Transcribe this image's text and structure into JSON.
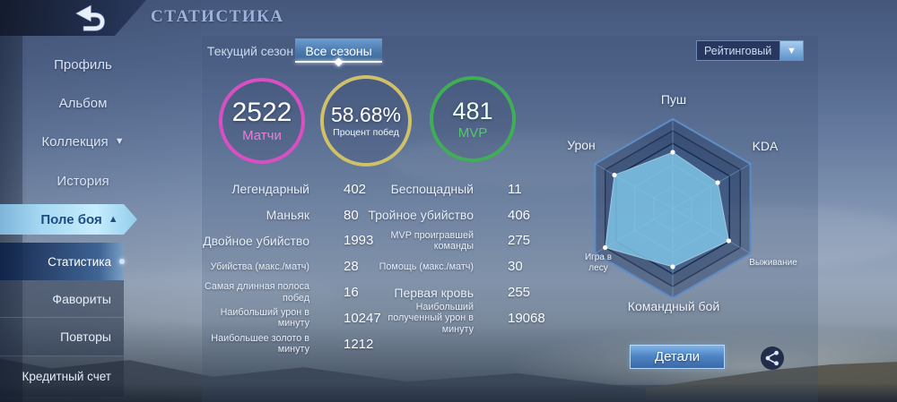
{
  "header": {
    "title": "СТАТИСТИКА"
  },
  "sidebar": {
    "items": [
      {
        "label": "Профиль"
      },
      {
        "label": "Альбом"
      },
      {
        "label": "Коллекция",
        "chevron": "down"
      },
      {
        "label": "История"
      },
      {
        "label": "Поле боя",
        "chevron": "up",
        "state": "selected"
      },
      {
        "label": "Статистика",
        "state": "active"
      },
      {
        "label": "Фавориты"
      },
      {
        "label": "Повторы"
      },
      {
        "label": "Кредитный счет"
      }
    ]
  },
  "panel": {
    "tabs": [
      {
        "label": "Текущий сезон",
        "active": false
      },
      {
        "label": "Все сезоны",
        "active": true
      }
    ],
    "filter": {
      "value": "Рейтинговый"
    },
    "circles": [
      {
        "value": "2522",
        "label": "Матчи"
      },
      {
        "value": "58.68%",
        "label": "Процент побед"
      },
      {
        "value": "481",
        "label": "MVP"
      }
    ],
    "stats_left": [
      {
        "label": "Легендарный",
        "value": "402"
      },
      {
        "label": "Маньяк",
        "value": "80"
      },
      {
        "label": "Двойное убийство",
        "value": "1993"
      },
      {
        "label": "Убийства (макс./матч)",
        "value": "28"
      },
      {
        "label": "Самая длинная полоса побед",
        "value": "16"
      },
      {
        "label": "Наибольший урон в минуту",
        "value": "10247"
      },
      {
        "label": "Наибольшее золото в минуту",
        "value": "1212"
      }
    ],
    "stats_right": [
      {
        "label": "Беспощадный",
        "value": "11"
      },
      {
        "label": "Тройное убийство",
        "value": "406"
      },
      {
        "label": "MVP проигравшей команды",
        "value": "275"
      },
      {
        "label": "Помощь (макс./матч)",
        "value": "30"
      },
      {
        "label": "Первая кровь",
        "value": "255"
      },
      {
        "label": "Наибольший полученный урон в минуту",
        "value": "19068"
      }
    ],
    "details_button": "Детали"
  },
  "chart_data": {
    "type": "radar",
    "categories": [
      "Пуш",
      "KDA",
      "Выживание",
      "Командный бой",
      "Игра в лесу",
      "Урон"
    ],
    "values": [
      0.63,
      0.58,
      0.72,
      0.65,
      0.87,
      0.75
    ],
    "max": 1.0,
    "grid_levels": [
      0.245,
      0.49,
      0.73,
      0.87,
      1.0
    ],
    "legend": "none",
    "fill_color": "#87ceeb"
  },
  "colors": {
    "matches_ring": "#d94fc3",
    "winrate_ring": "#cfc06a",
    "mvp_ring": "#3fae57",
    "matches_label": "#e87fd4",
    "mvp_label": "#52c96a",
    "radar_fill": "#87ceeb",
    "selected_banner": "#a9dcf5",
    "details_button": "#4f86c6"
  }
}
